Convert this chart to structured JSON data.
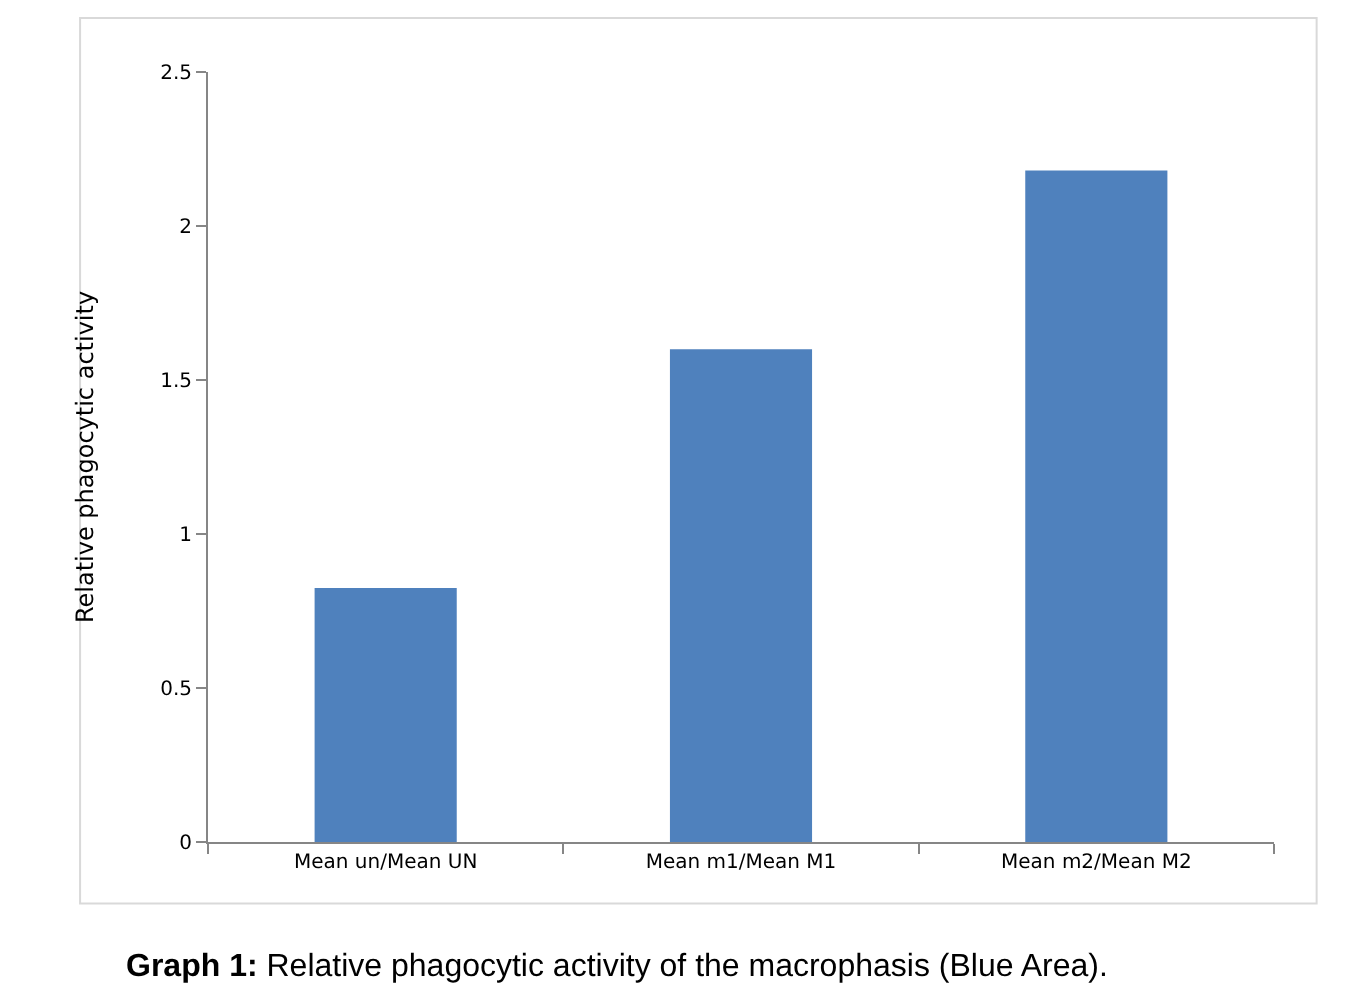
{
  "chart_data": {
    "type": "bar",
    "ylabel": "Relative phagocytic activity",
    "categories": [
      "Mean un/Mean UN",
      "Mean m1/Mean M1",
      "Mean m2/Mean M2"
    ],
    "values": [
      0.825,
      1.6,
      2.18
    ],
    "color": "#4f81bd",
    "ylim": [
      0,
      2.5
    ],
    "yticks": [
      0,
      0.5,
      1,
      1.5,
      2,
      2.5
    ],
    "grid": false,
    "annotations": [
      "Graph 1: Relative phagocytic activity of the macrophasis (Blue Area)."
    ]
  }
}
